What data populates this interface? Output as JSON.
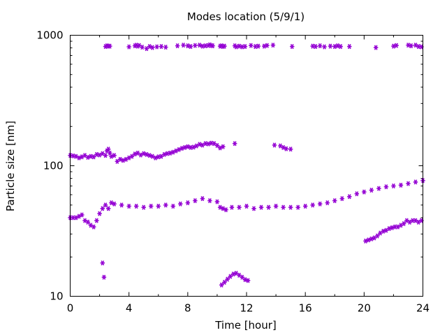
{
  "chart_data": {
    "type": "scatter",
    "title": "Modes location (5/9/1)",
    "xlabel": "Time [hour]",
    "ylabel": "Particle size [nm]",
    "xlim": [
      0,
      24
    ],
    "ylim": [
      10,
      1000
    ],
    "yscale": "log",
    "x_ticks": [
      0,
      4,
      8,
      12,
      16,
      20,
      24
    ],
    "x_tick_labels": [
      "0",
      "4",
      "8",
      "12",
      "16",
      "20",
      "24"
    ],
    "y_ticks": [
      10,
      100,
      1000
    ],
    "y_tick_labels": [
      "10",
      "100",
      "1000"
    ],
    "grid": false,
    "marker": "asterisk",
    "color": "#9400D3",
    "series": [
      {
        "x": [
          2.4,
          2.5,
          2.6,
          2.7,
          4.0,
          4.4,
          4.5,
          4.6,
          4.7,
          4.9,
          5.2,
          5.4,
          5.6,
          5.9,
          6.2,
          6.5,
          7.3,
          7.7,
          8.0,
          8.2,
          8.5,
          8.8,
          9.0,
          9.2,
          9.4,
          9.5,
          9.6,
          9.7,
          10.2,
          10.3,
          10.4,
          10.5,
          11.2,
          11.3,
          11.5,
          11.7,
          11.9,
          12.3,
          12.6,
          12.8,
          13.2,
          13.4,
          13.8,
          15.1,
          16.5,
          16.7,
          17.0,
          17.3,
          17.7,
          18.0,
          18.2,
          18.4,
          19.0,
          20.8,
          22.0,
          22.2,
          23.0,
          23.2,
          23.5,
          23.7,
          23.9
        ],
        "y": [
          820,
          830,
          825,
          825,
          815,
          830,
          840,
          825,
          835,
          810,
          790,
          820,
          805,
          815,
          820,
          810,
          830,
          840,
          830,
          820,
          835,
          840,
          825,
          830,
          835,
          845,
          835,
          830,
          825,
          830,
          820,
          825,
          830,
          815,
          825,
          815,
          820,
          835,
          820,
          825,
          825,
          835,
          840,
          820,
          825,
          820,
          830,
          815,
          825,
          820,
          830,
          820,
          820,
          805,
          825,
          835,
          840,
          830,
          840,
          820,
          815
        ]
      },
      {
        "x": [
          0.0,
          0.2,
          0.4,
          0.6,
          0.8,
          1.0,
          1.2,
          1.4,
          1.6,
          1.8,
          2.0,
          2.2,
          2.4,
          2.5,
          2.6,
          2.7,
          2.8,
          3.0,
          3.2,
          3.4,
          3.6,
          3.8,
          4.0,
          4.2,
          4.4,
          4.6,
          4.8,
          5.0,
          5.2,
          5.4,
          5.6,
          5.8,
          6.0,
          6.2,
          6.4,
          6.6,
          6.8,
          7.0,
          7.2,
          7.4,
          7.6,
          7.8,
          8.0,
          8.2,
          8.4,
          8.6,
          8.8,
          9.0,
          9.2,
          9.4,
          9.6,
          9.8,
          10.0,
          10.2,
          10.4,
          11.2,
          13.9,
          14.3,
          14.5,
          14.7,
          15.0
        ],
        "y": [
          120,
          119,
          118,
          115,
          117,
          120,
          116,
          118,
          117,
          122,
          121,
          124,
          120,
          130,
          134,
          125,
          118,
          120,
          108,
          112,
          110,
          112,
          115,
          118,
          123,
          125,
          121,
          124,
          122,
          120,
          118,
          115,
          117,
          118,
          122,
          124,
          125,
          127,
          130,
          133,
          136,
          138,
          140,
          138,
          139,
          142,
          146,
          144,
          148,
          147,
          149,
          148,
          143,
          137,
          140,
          148,
          144,
          142,
          138,
          135,
          134
        ]
      },
      {
        "x": [
          0.0,
          0.2,
          0.4,
          0.6,
          0.8,
          1.0,
          1.2,
          1.4,
          1.6,
          1.8,
          2.0,
          2.2,
          2.4,
          2.6,
          2.8,
          3.0,
          3.5,
          4.0,
          4.5,
          5.0,
          5.5,
          6.0,
          6.5,
          7.0,
          7.5,
          8.0,
          8.5,
          9.0,
          9.5,
          10.0,
          10.2,
          10.4,
          10.6,
          11.0,
          11.5,
          12.0,
          12.5,
          13.0,
          13.5,
          14.0,
          14.5,
          15.0,
          15.5,
          16.0,
          16.5,
          17.0,
          17.5,
          18.0,
          18.5,
          19.0,
          19.5,
          20.0,
          20.5,
          21.0,
          21.5,
          22.0,
          22.5,
          23.0,
          23.5,
          24.0
        ],
        "y": [
          40,
          40,
          40,
          41,
          42,
          38,
          37,
          35,
          34,
          38,
          43,
          47,
          50,
          47,
          52,
          51,
          50,
          49,
          49,
          48,
          49,
          49,
          50,
          49,
          51,
          52,
          54,
          56,
          54,
          53,
          48,
          47,
          46,
          48,
          48,
          49,
          47,
          48,
          48,
          49,
          48,
          48,
          48,
          49,
          50,
          51,
          52,
          54,
          56,
          58,
          61,
          63,
          65,
          67,
          69,
          70,
          71,
          73,
          75,
          77
        ]
      },
      {
        "x": [
          2.2,
          2.3,
          10.3,
          10.5,
          10.7,
          10.9,
          11.1,
          11.3,
          11.5,
          11.7,
          11.9,
          12.1,
          20.1,
          20.3,
          20.5,
          20.7,
          20.9,
          21.1,
          21.3,
          21.5,
          21.7,
          21.9,
          22.1,
          22.3,
          22.5,
          22.7,
          22.9,
          23.1,
          23.3,
          23.5,
          23.7,
          23.9
        ],
        "y": [
          18,
          14,
          12.2,
          12.8,
          13.5,
          14.2,
          14.8,
          15.0,
          14.5,
          14.0,
          13.4,
          13.2,
          26.5,
          27,
          27.5,
          28,
          29,
          30.5,
          31.5,
          32,
          33,
          33.5,
          34,
          34,
          35,
          36,
          38,
          37,
          38,
          38,
          37,
          38
        ]
      }
    ]
  }
}
